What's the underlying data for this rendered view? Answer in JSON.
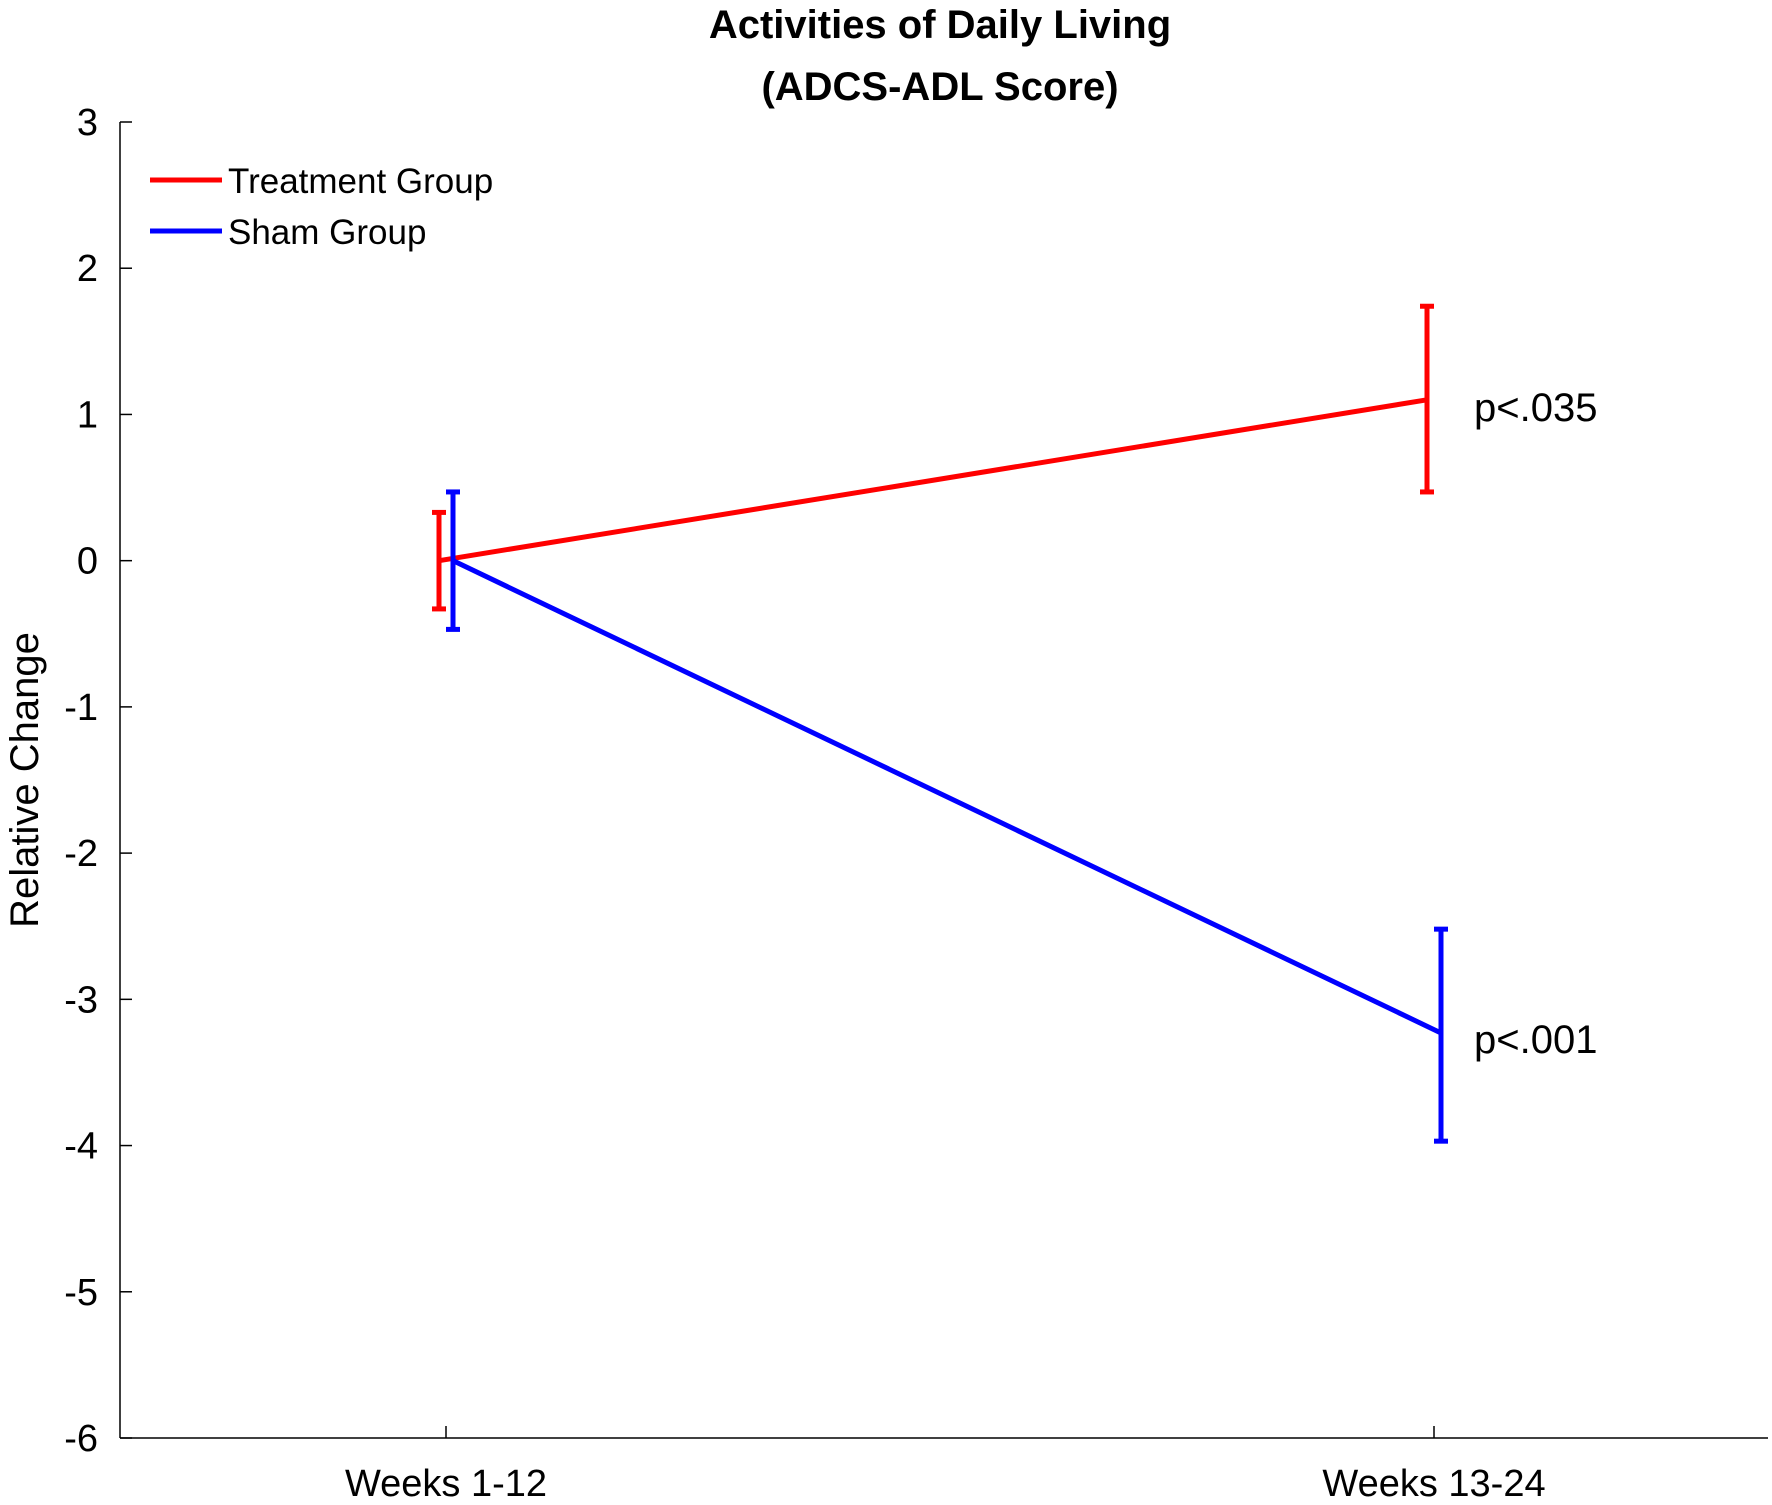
{
  "chart_data": {
    "type": "line",
    "title_lines": [
      "Activities of Daily Living",
      "(ADCS-ADL Score)"
    ],
    "xlabel": "",
    "ylabel": "Relative Change",
    "categories": [
      "Weeks 1-12",
      "Weeks 13-24"
    ],
    "ylim": [
      -6,
      3
    ],
    "yticks": [
      3,
      2,
      1,
      0,
      -1,
      -2,
      -3,
      -4,
      -5,
      -6
    ],
    "grid": false,
    "legend_position": "top-left",
    "series": [
      {
        "name": "Treatment Group",
        "color": "#ff0000",
        "values": [
          0.0,
          1.1
        ],
        "error_low": [
          -0.33,
          0.47
        ],
        "error_high": [
          0.33,
          1.74
        ]
      },
      {
        "name": "Sham Group",
        "color": "#0000ff",
        "values": [
          0.0,
          -3.23
        ],
        "error_low": [
          -0.47,
          -3.97
        ],
        "error_high": [
          0.47,
          -2.52
        ]
      }
    ],
    "annotations": [
      {
        "text": "p<.035",
        "category": "Weeks 13-24",
        "y": 1.05
      },
      {
        "text": "p<.001",
        "category": "Weeks 13-24",
        "y": -3.27
      }
    ]
  }
}
